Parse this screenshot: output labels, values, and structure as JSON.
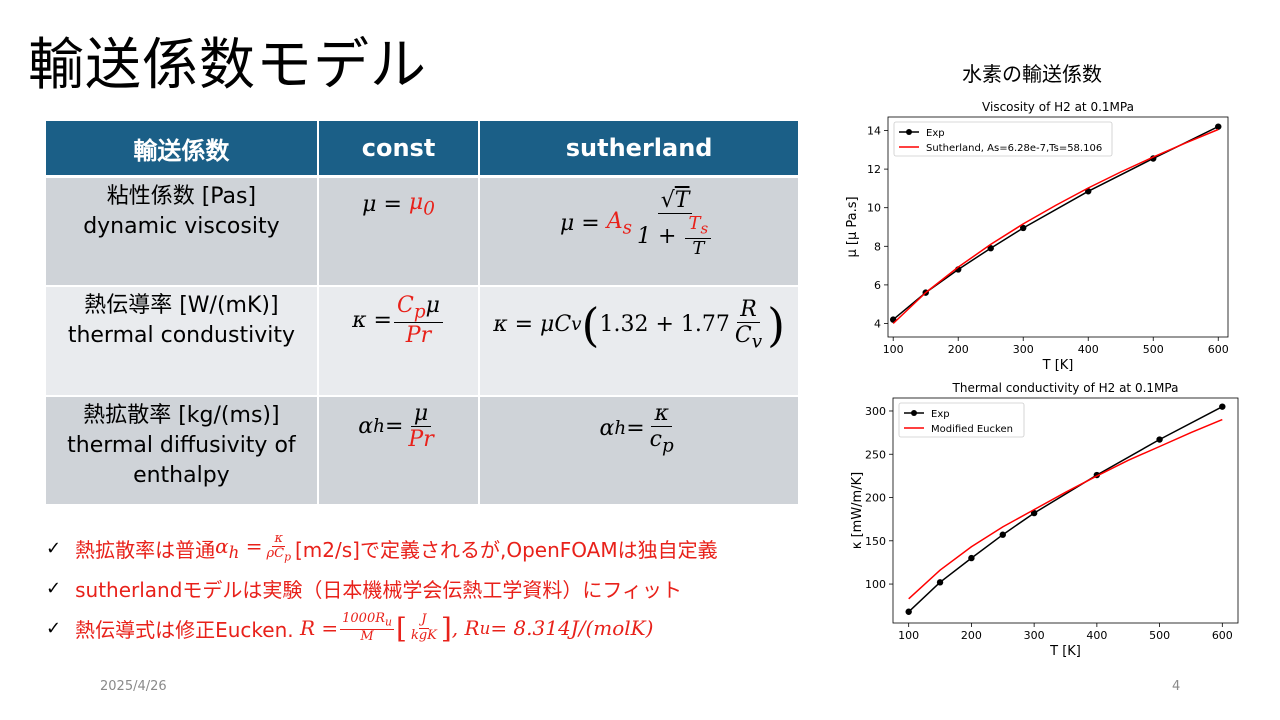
{
  "title": "輸送係数モデル",
  "table": {
    "headers": [
      "輸送係数",
      "const",
      "sutherland"
    ],
    "rows": [
      {
        "label_jp": "粘性係数 [Pas]",
        "label_en": "dynamic viscosity"
      },
      {
        "label_jp": "熱伝導率 [W/(mK)]",
        "label_en": "thermal condustivity"
      },
      {
        "label_jp": "熱拡散率 [kg/(ms)]",
        "label_en": "thermal diffusivity of enthalpy"
      }
    ]
  },
  "bullets": {
    "b1_pre": "熱拡散率は普通",
    "b1_post": " [m2/s]で定義されるが,OpenFOAMは独自定義",
    "b2": "sutherlandモデルは実験（日本機械学会伝熱工学資料）にフィット",
    "b3_pre": "熱伝導式は修正Eucken.",
    "b3_post": ", R",
    "b3_value": " = 8.314J/(molK)"
  },
  "footer": {
    "date": "2025/4/26",
    "page": "4"
  },
  "right_title": "水素の輸送係数",
  "colors": {
    "header_bg": "#1b5f87",
    "row_dark": "#cfd3d8",
    "row_light": "#e9ebee",
    "accent_red": "#e8211a",
    "exp_line": "#000000",
    "model_line": "#ff0000"
  },
  "chart_data": [
    {
      "type": "line",
      "title": "Viscosity of H2 at 0.1MPa",
      "xlabel": "T [K]",
      "ylabel": "μ [μ Pa.s]",
      "xlim": [
        92,
        615
      ],
      "ylim": [
        3.3,
        14.7
      ],
      "xticks": [
        100,
        200,
        300,
        400,
        500,
        600
      ],
      "yticks": [
        4,
        6,
        8,
        10,
        12,
        14
      ],
      "legend": "top-left",
      "series": [
        {
          "name": "Exp",
          "x": [
            100,
            150,
            200,
            250,
            300,
            400,
            500,
            600
          ],
          "y": [
            4.2,
            5.6,
            6.8,
            7.9,
            8.95,
            10.85,
            12.55,
            14.2
          ],
          "color": "#000000",
          "markers": true
        },
        {
          "name": "Sutherland, As=6.28e-7,Ts=58.106",
          "x": [
            100,
            150,
            200,
            250,
            300,
            350,
            400,
            450,
            500,
            550,
            600
          ],
          "y": [
            4.0,
            5.6,
            6.92,
            8.1,
            9.16,
            10.12,
            11.02,
            11.85,
            12.62,
            13.36,
            14.05
          ],
          "color": "#ff0000",
          "markers": false
        }
      ]
    },
    {
      "type": "line",
      "title": "Thermal conductivity of H2 at 0.1MPa",
      "xlabel": "T [K]",
      "ylabel": "κ [mW/m/K]",
      "xlim": [
        75,
        625
      ],
      "ylim": [
        55,
        315
      ],
      "xticks": [
        100,
        200,
        300,
        400,
        500,
        600
      ],
      "yticks": [
        100,
        150,
        200,
        250,
        300
      ],
      "legend": "top-left",
      "series": [
        {
          "name": "Exp",
          "x": [
            100,
            150,
            200,
            250,
            300,
            400,
            500,
            600
          ],
          "y": [
            68,
            102,
            130,
            157,
            182,
            226,
            267,
            305
          ],
          "color": "#000000",
          "markers": true
        },
        {
          "name": "Modified Eucken",
          "x": [
            100,
            150,
            200,
            250,
            300,
            350,
            400,
            450,
            500,
            550,
            600
          ],
          "y": [
            83,
            116,
            143,
            166,
            186,
            206,
            225,
            243,
            259,
            275,
            290
          ],
          "color": "#ff0000",
          "markers": false
        }
      ]
    }
  ]
}
